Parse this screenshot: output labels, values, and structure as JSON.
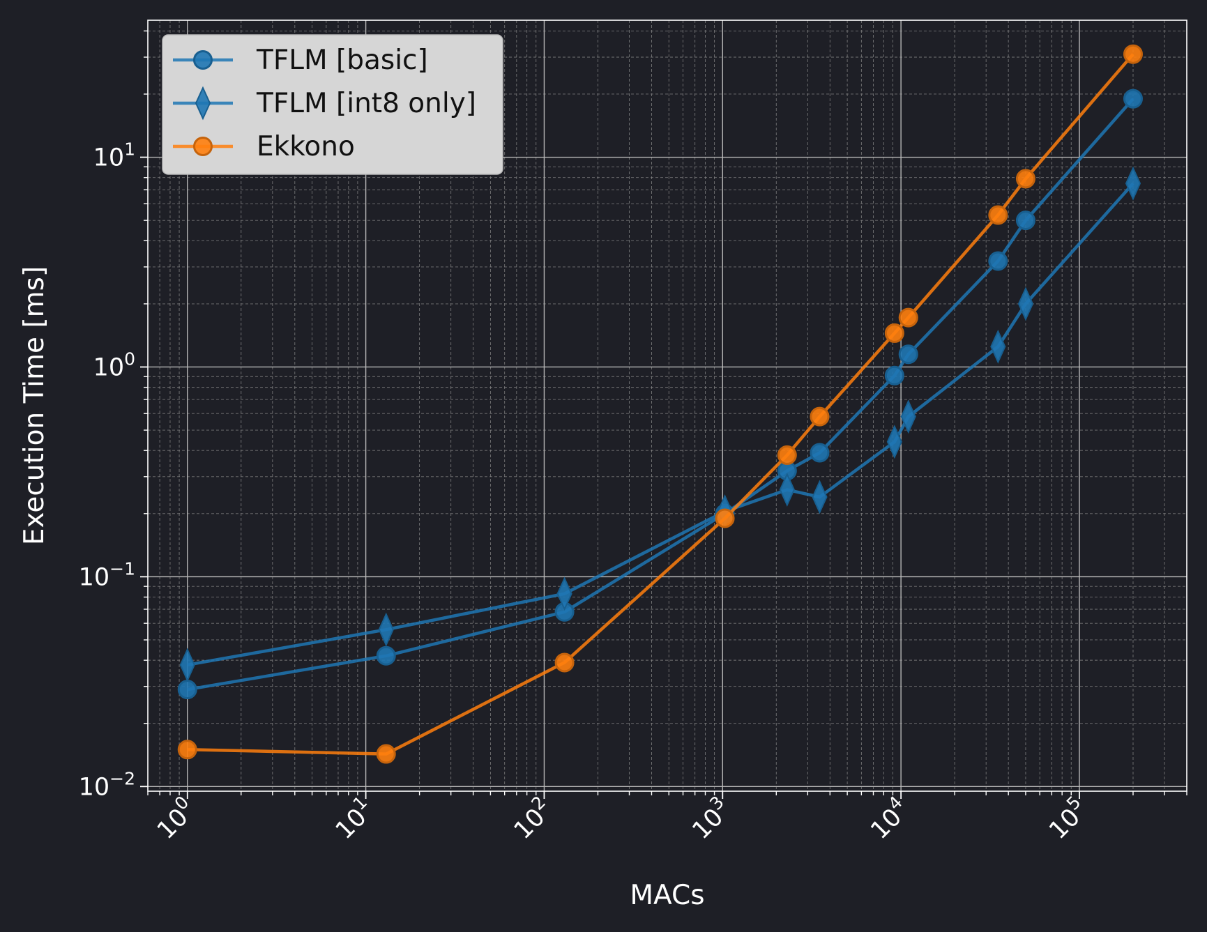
{
  "chart_data": {
    "type": "line",
    "title": "",
    "xlabel": "MACs",
    "ylabel": "Execution Time [ms]",
    "xscale": "log",
    "yscale": "log",
    "xlim": [
      0.6,
      400000
    ],
    "ylim": [
      0.0095,
      45
    ],
    "grid": "major and minor",
    "legend": "top-left",
    "x_ticks": [
      {
        "value": 1,
        "base": "10",
        "exp": "0"
      },
      {
        "value": 10,
        "base": "10",
        "exp": "1"
      },
      {
        "value": 100,
        "base": "10",
        "exp": "2"
      },
      {
        "value": 1000,
        "base": "10",
        "exp": "3"
      },
      {
        "value": 10000,
        "base": "10",
        "exp": "4"
      },
      {
        "value": 100000,
        "base": "10",
        "exp": "5"
      }
    ],
    "y_ticks": [
      {
        "value": 0.01,
        "base": "10",
        "exp": "−2"
      },
      {
        "value": 0.1,
        "base": "10",
        "exp": "−1"
      },
      {
        "value": 1,
        "base": "10",
        "exp": "0"
      },
      {
        "value": 10,
        "base": "10",
        "exp": "1"
      }
    ],
    "series": [
      {
        "name": "TFLM [basic]",
        "color": "#1f77b4",
        "marker": "circle",
        "x": [
          1,
          13,
          130,
          1030,
          2300,
          3500,
          9200,
          11000,
          35000,
          50000,
          200000
        ],
        "y": [
          0.029,
          0.042,
          0.068,
          0.2,
          0.32,
          0.39,
          0.91,
          1.15,
          3.2,
          5.0,
          19.0
        ]
      },
      {
        "name": "TFLM [int8 only]",
        "color": "#1f77b4",
        "marker": "diamond",
        "x": [
          1,
          13,
          130,
          1030,
          2300,
          3500,
          9200,
          11000,
          35000,
          50000,
          200000
        ],
        "y": [
          0.038,
          0.056,
          0.083,
          0.205,
          0.26,
          0.24,
          0.44,
          0.58,
          1.25,
          2.0,
          7.5
        ]
      },
      {
        "name": "Ekkono",
        "color": "#ff7f0e",
        "marker": "circle",
        "x": [
          1,
          13,
          130,
          1030,
          2300,
          3500,
          9200,
          11000,
          35000,
          50000,
          200000
        ],
        "y": [
          0.015,
          0.0143,
          0.039,
          0.19,
          0.38,
          0.58,
          1.45,
          1.72,
          5.3,
          7.9,
          31.0
        ]
      }
    ]
  }
}
